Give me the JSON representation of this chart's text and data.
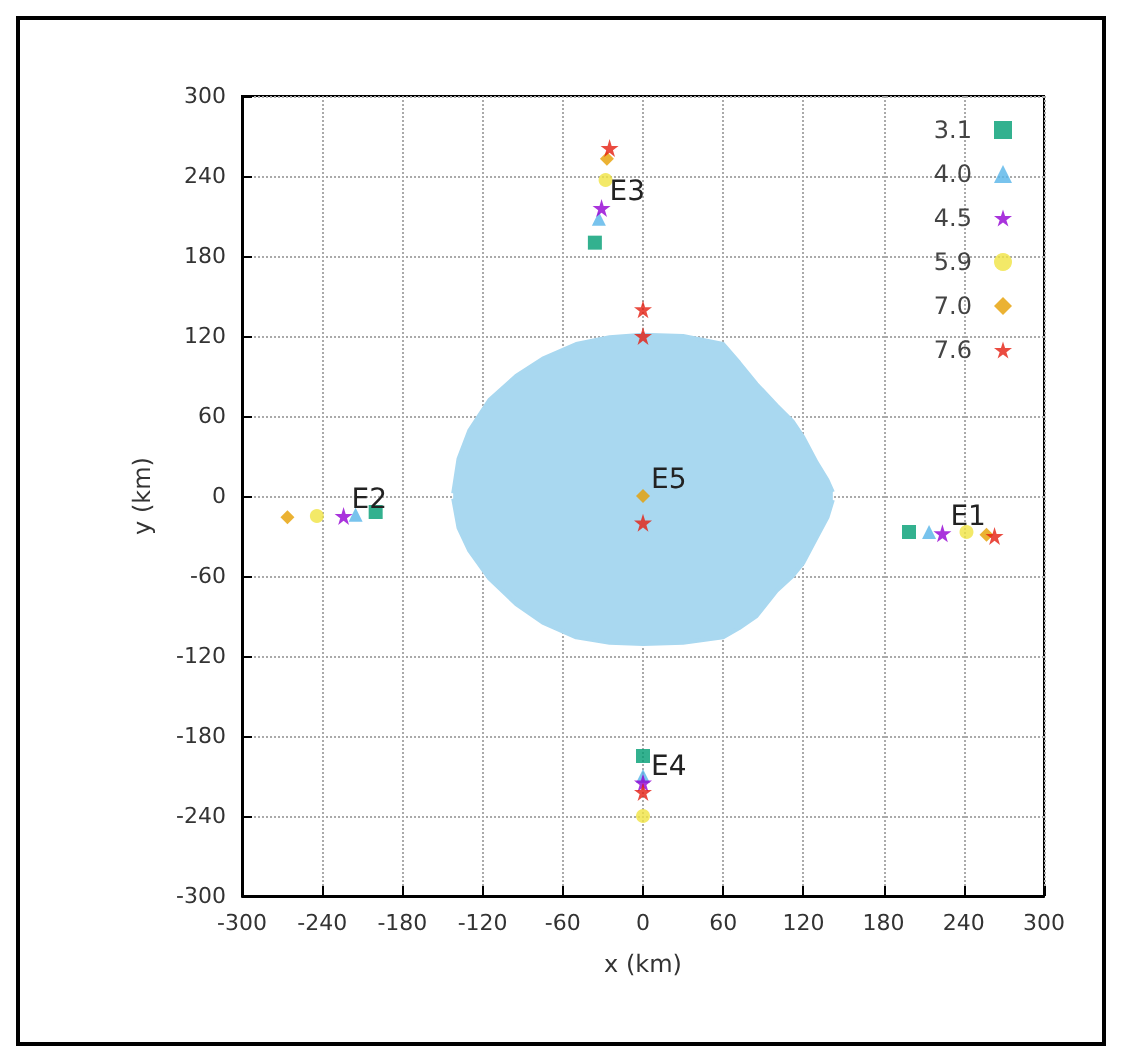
{
  "chart_data": {
    "type": "scatter",
    "xlabel": "x (km)",
    "ylabel": "y (km)",
    "xlim": [
      -300,
      300
    ],
    "xticks": [
      -300,
      -240,
      -180,
      -120,
      -60,
      0,
      60,
      120,
      180,
      240,
      300
    ],
    "ylim": [
      -300,
      300
    ],
    "yticks": [
      -300,
      -240,
      -180,
      -120,
      -60,
      0,
      60,
      120,
      180,
      240,
      300
    ],
    "grid": true,
    "legend": "top right",
    "annotations": [
      {
        "text": "E1",
        "x": 224,
        "y": -28
      },
      {
        "text": "E2",
        "x": -224,
        "y": -15
      },
      {
        "text": "E3",
        "x": -31,
        "y": 216
      },
      {
        "text": "E4",
        "x": 0,
        "y": -215
      },
      {
        "text": "E5",
        "x": 0,
        "y": 0
      }
    ],
    "series": [
      {
        "type": "area",
        "color": "#a9d8f0",
        "x": [
          -142,
          -138,
          -130,
          -115,
          -95,
          -75,
          -50,
          -25,
          0,
          30,
          60,
          72,
          85,
          100,
          112,
          120,
          130,
          138,
          142
        ],
        "values": [
          2,
          28,
          49,
          72,
          90,
          103,
          114,
          119,
          121,
          120,
          114,
          100,
          84,
          68,
          56,
          44,
          25,
          12,
          3
        ]
      },
      {
        "type": "area",
        "color": "#a9d8f0",
        "x": [
          -142,
          -138,
          -130,
          -115,
          -95,
          -75,
          -50,
          -25,
          0,
          30,
          60,
          72,
          85,
          100,
          112,
          120,
          130,
          138,
          142
        ],
        "values": [
          -2,
          -24,
          -41,
          -62,
          -81,
          -95,
          -106,
          -110,
          -111,
          -110,
          -106,
          -99,
          -90,
          -71,
          -60,
          -50,
          -31,
          -16,
          -3
        ]
      },
      {
        "name": "3.1",
        "color": "#009e73",
        "marker": "square",
        "x": [
          -36,
          -200,
          199,
          0
        ],
        "values": [
          190,
          -12,
          -27,
          -195
        ]
      },
      {
        "name": "4.0",
        "color": "#56b4e9",
        "marker": "triangle",
        "x": [
          -33,
          -215,
          214,
          0
        ],
        "values": [
          208,
          -14,
          -27,
          -210
        ]
      },
      {
        "name": "4.5",
        "color": "#9400d3",
        "marker": "star",
        "x": [
          -31,
          -224,
          224,
          0
        ],
        "values": [
          216,
          -15,
          -28,
          -215
        ]
      },
      {
        "name": "5.9",
        "color": "#f0e442",
        "marker": "circle",
        "x": [
          -28,
          -244,
          242,
          0
        ],
        "values": [
          237,
          -15,
          -27,
          -240
        ]
      },
      {
        "name": "7.0",
        "color": "#e69f00",
        "marker": "diamond",
        "x": [
          -27,
          -266,
          257,
          null,
          0
        ],
        "values": [
          253,
          -16,
          -29,
          null,
          0
        ]
      },
      {
        "name": "7.6",
        "color": "#e51e10",
        "marker": "star",
        "x": [
          -25,
          null,
          263,
          0,
          0,
          0,
          0
        ],
        "values": [
          261,
          null,
          -30,
          -222,
          140,
          120,
          -20
        ]
      }
    ]
  }
}
